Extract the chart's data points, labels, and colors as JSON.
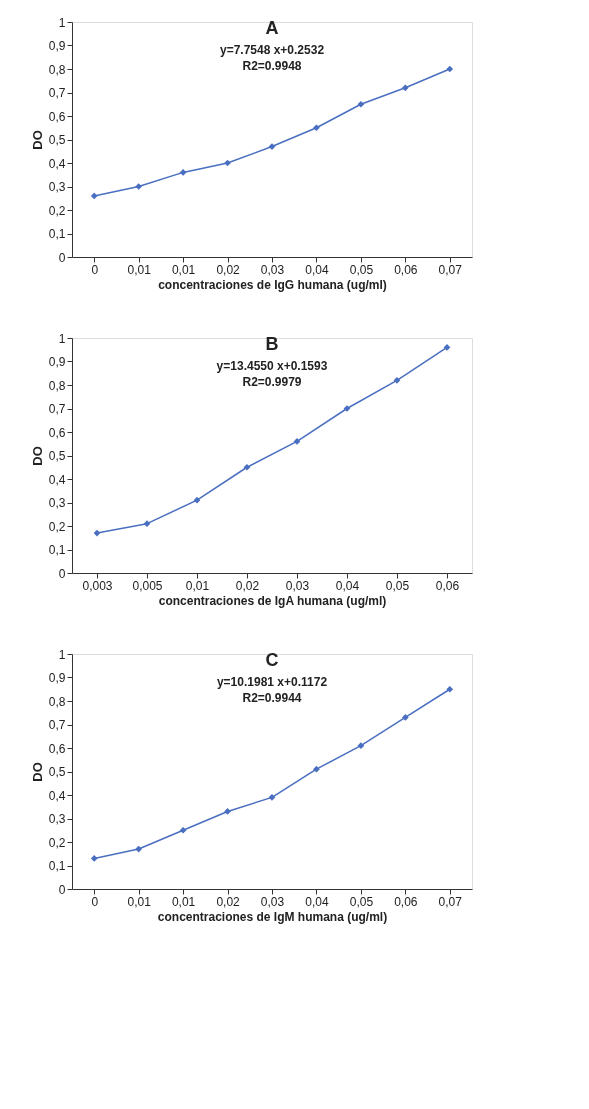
{
  "chart_data": [
    {
      "type": "line",
      "title": "A",
      "annotations": [
        "y=7.7548 x+0.2532",
        "R2=0.9948"
      ],
      "xlabel": "concentraciones de IgG humana (ug/ml)",
      "ylabel": "DO",
      "categories": [
        "0",
        "0,01",
        "0,01",
        "0,02",
        "0,03",
        "0,04",
        "0,05",
        "0,06",
        "0,07"
      ],
      "series": [
        {
          "color": "#4a6fc0",
          "values": [
            0.26,
            0.3,
            0.36,
            0.4,
            0.47,
            0.55,
            0.65,
            0.72,
            0.8
          ]
        }
      ],
      "ylim": [
        0,
        1
      ],
      "yticks": [
        0,
        {
          "value": 0.1,
          "label": "0,1"
        },
        {
          "value": 0.2,
          "label": "0,2"
        },
        {
          "value": 0.3,
          "label": "0,3"
        },
        {
          "value": 0.4,
          "label": "0,4"
        },
        {
          "value": 0.5,
          "label": "0,5"
        },
        {
          "value": 0.6,
          "label": "0,6"
        },
        {
          "value": 0.7,
          "label": "0,7"
        },
        {
          "value": 0.8,
          "label": "0,8"
        },
        {
          "value": 0.9,
          "label": "0,9"
        },
        1
      ],
      "grid": false,
      "marker": "diamond",
      "line_style": "solid"
    },
    {
      "type": "line",
      "title": "B",
      "annotations": [
        "y=13.4550 x+0.1593",
        "R2=0.9979"
      ],
      "xlabel": "concentraciones de IgA humana (ug/ml)",
      "ylabel": "DO",
      "categories": [
        "0,003",
        "0,005",
        "0,01",
        "0,02",
        "0,03",
        "0,04",
        "0,05",
        "0,06"
      ],
      "series": [
        {
          "color": "#4a6fc0",
          "values": [
            0.17,
            0.21,
            0.31,
            0.45,
            0.56,
            0.7,
            0.82,
            0.96
          ]
        }
      ],
      "ylim": [
        0,
        1
      ],
      "yticks": [
        0,
        {
          "value": 0.1,
          "label": "0,1"
        },
        {
          "value": 0.2,
          "label": "0,2"
        },
        {
          "value": 0.3,
          "label": "0,3"
        },
        {
          "value": 0.4,
          "label": "0,4"
        },
        {
          "value": 0.5,
          "label": "0,5"
        },
        {
          "value": 0.6,
          "label": "0,6"
        },
        {
          "value": 0.7,
          "label": "0,7"
        },
        {
          "value": 0.8,
          "label": "0,8"
        },
        {
          "value": 0.9,
          "label": "0,9"
        },
        1
      ],
      "grid": false,
      "marker": "diamond",
      "line_style": "solid"
    },
    {
      "type": "line",
      "title": "C",
      "annotations": [
        "y=10.1981 x+0.1172",
        "R2=0.9944"
      ],
      "xlabel": "concentraciones de IgM humana (ug/ml)",
      "ylabel": "DO",
      "categories": [
        "0",
        "0,01",
        "0,01",
        "0,02",
        "0,03",
        "0,04",
        "0,05",
        "0,06",
        "0,07"
      ],
      "series": [
        {
          "color": "#4a6fc0",
          "values": [
            0.13,
            0.17,
            0.25,
            0.33,
            0.39,
            0.51,
            0.61,
            0.73,
            0.85
          ]
        }
      ],
      "ylim": [
        0,
        1
      ],
      "yticks": [
        0,
        {
          "value": 0.1,
          "label": "0,1"
        },
        {
          "value": 0.2,
          "label": "0,2"
        },
        {
          "value": 0.3,
          "label": "0,3"
        },
        {
          "value": 0.4,
          "label": "0,4"
        },
        {
          "value": 0.5,
          "label": "0,5"
        },
        {
          "value": 0.6,
          "label": "0,6"
        },
        {
          "value": 0.7,
          "label": "0,7"
        },
        {
          "value": 0.8,
          "label": "0,8"
        },
        {
          "value": 0.9,
          "label": "0,9"
        },
        1
      ],
      "grid": false,
      "marker": "diamond",
      "line_style": "solid"
    }
  ]
}
